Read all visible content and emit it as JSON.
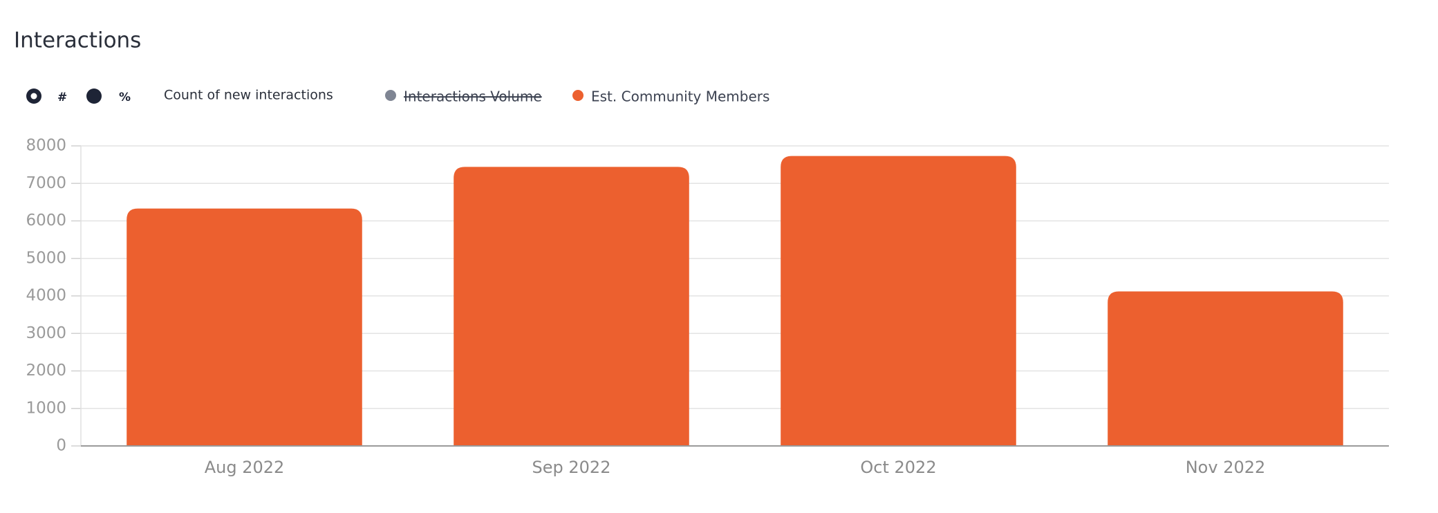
{
  "controls": {
    "options": [
      "#",
      "%"
    ],
    "selected": 0,
    "metric": "Count of new interactions"
  },
  "chart_data": {
    "type": "bar",
    "title": "Interactions",
    "categories": [
      "Aug 2022",
      "Sep 2022",
      "Oct 2022",
      "Nov 2022"
    ],
    "series": [
      {
        "name": "Interactions Volume",
        "color": "#7f8593",
        "hidden": true,
        "values": [
          null,
          null,
          null,
          null
        ]
      },
      {
        "name": "Est. Community Members",
        "color": "#ec602f",
        "values": [
          6330,
          7440,
          7730,
          4120
        ]
      }
    ],
    "ylim": [
      0,
      8000
    ],
    "yticks": [
      0,
      1000,
      2000,
      3000,
      4000,
      5000,
      6000,
      7000,
      8000
    ],
    "grid": true
  }
}
